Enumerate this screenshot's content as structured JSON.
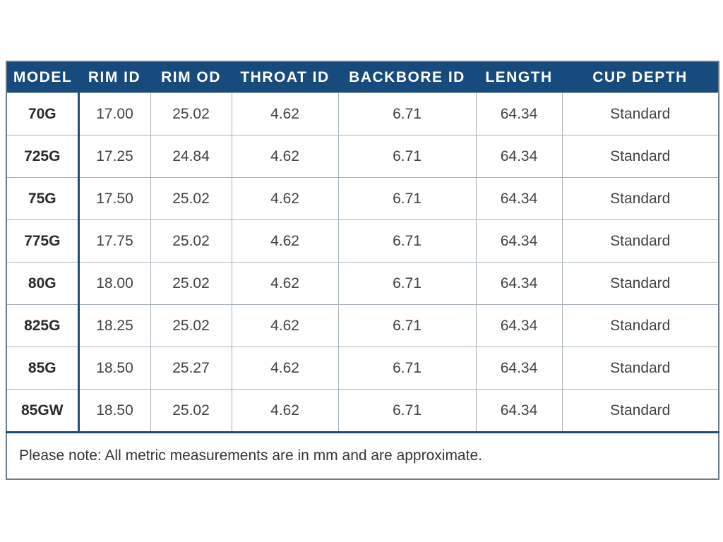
{
  "colors": {
    "header_background": "#174b7d",
    "header_text": "#ffffff",
    "accent_rule": "#1d4e7f",
    "grid_line": "#a9b3bc",
    "outer_border": "#6e7a86",
    "body_text": "#3f4347",
    "page_background": "#ffffff"
  },
  "chart_data": {
    "type": "table",
    "title": "",
    "columns": [
      "MODEL",
      "RIM ID",
      "RIM OD",
      "THROAT ID",
      "BACKBORE ID",
      "LENGTH",
      "CUP DEPTH"
    ],
    "rows": [
      [
        "70G",
        "17.00",
        "25.02",
        "4.62",
        "6.71",
        "64.34",
        "Standard"
      ],
      [
        "725G",
        "17.25",
        "24.84",
        "4.62",
        "6.71",
        "64.34",
        "Standard"
      ],
      [
        "75G",
        "17.50",
        "25.02",
        "4.62",
        "6.71",
        "64.34",
        "Standard"
      ],
      [
        "775G",
        "17.75",
        "25.02",
        "4.62",
        "6.71",
        "64.34",
        "Standard"
      ],
      [
        "80G",
        "18.00",
        "25.02",
        "4.62",
        "6.71",
        "64.34",
        "Standard"
      ],
      [
        "825G",
        "18.25",
        "25.02",
        "4.62",
        "6.71",
        "64.34",
        "Standard"
      ],
      [
        "85G",
        "18.50",
        "25.27",
        "4.62",
        "6.71",
        "64.34",
        "Standard"
      ],
      [
        "85GW",
        "18.50",
        "25.02",
        "4.62",
        "6.71",
        "64.34",
        "Standard"
      ]
    ],
    "note": "Please note: All metric measurements are in mm and are approximate.",
    "layout_hints": {
      "units": "mm",
      "grid": "on",
      "header_style": "solid navy band",
      "model_column_separator": "thick navy rule",
      "note_separator": "thick navy rule"
    }
  }
}
